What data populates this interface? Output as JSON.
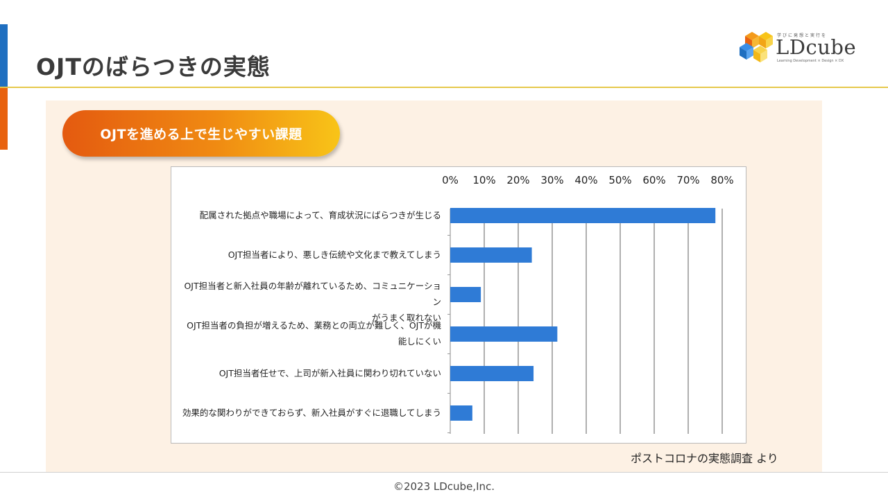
{
  "page": {
    "title": "OJTのばらつきの実態"
  },
  "logo": {
    "name": "LDcube",
    "tagline": "学びに発想と実行を",
    "sub": "Learning Development × Design × DX"
  },
  "section": {
    "heading": "OJTを進める上で生じやすい課題"
  },
  "chart_data": {
    "type": "bar",
    "orientation": "horizontal",
    "title": "",
    "xlabel": "",
    "ylabel": "",
    "xlim": [
      0,
      80
    ],
    "ticks": [
      "0%",
      "10%",
      "20%",
      "30%",
      "40%",
      "50%",
      "60%",
      "70%",
      "80%"
    ],
    "tick_values": [
      0,
      10,
      20,
      30,
      40,
      50,
      60,
      70,
      80
    ],
    "grid": true,
    "categories": [
      [
        "配属された拠点や職場によって、育成状況にばらつきが生じる"
      ],
      [
        "OJT担当者により、悪しき伝統や文化まで教えてしまう"
      ],
      [
        "OJT担当者と新入社員の年齢が離れているため、コミュニケーション",
        "がうまく取れない"
      ],
      [
        "OJT担当者の負担が増えるため、業務との両立が難しく、OJTが機",
        "能しにくい"
      ],
      [
        "OJT担当者任せで、上司が新入社員に関わり切れていない"
      ],
      [
        "効果的な関わりができておらず、新入社員がすぐに退職してしまう"
      ]
    ],
    "values": [
      78,
      24,
      9,
      31.5,
      24.5,
      6.5
    ],
    "bar_color": "#2f7bd6"
  },
  "source": {
    "text": "ポストコロナの実態調査 より"
  },
  "footer": {
    "copyright": "©2023 LDcube,Inc."
  }
}
